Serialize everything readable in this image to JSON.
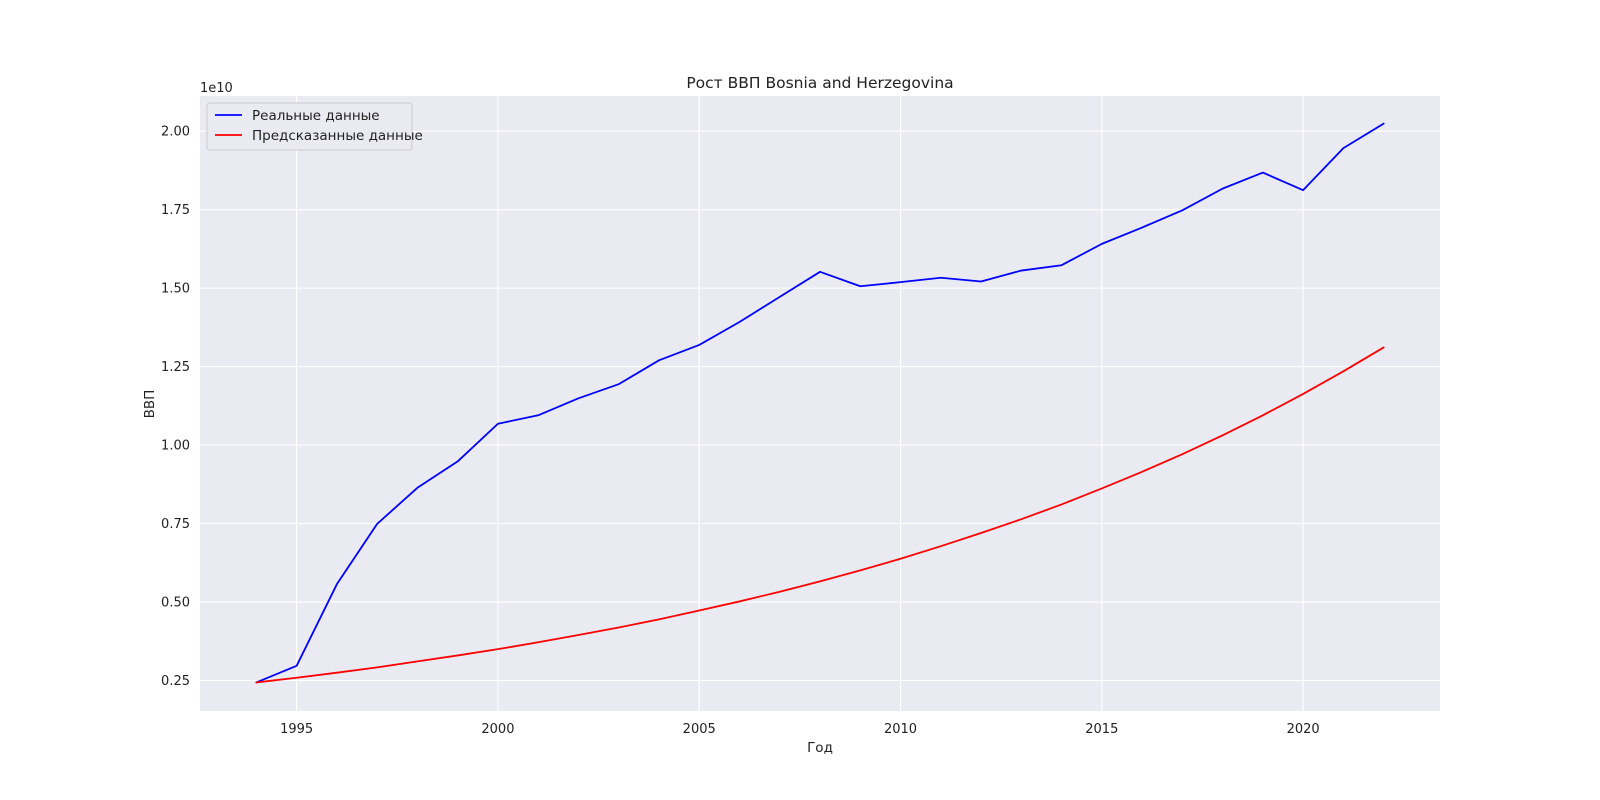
{
  "chart_data": {
    "type": "line",
    "title": "Рост ВВП Bosnia and Herzegovina",
    "xlabel": "Год",
    "ylabel": "ВВП",
    "y_offset_label": "1e10",
    "y_scale": 10000000000,
    "x": [
      1994,
      1995,
      1996,
      1997,
      1998,
      1999,
      2000,
      2001,
      2002,
      2003,
      2004,
      2005,
      2006,
      2007,
      2008,
      2009,
      2010,
      2011,
      2012,
      2013,
      2014,
      2015,
      2016,
      2017,
      2018,
      2019,
      2020,
      2021,
      2022
    ],
    "series": [
      {
        "name": "Реальные данные",
        "color": "#0000ff",
        "values": [
          0.244,
          0.297,
          0.557,
          0.749,
          0.864,
          0.948,
          1.068,
          1.095,
          1.149,
          1.194,
          1.27,
          1.319,
          1.392,
          1.472,
          1.552,
          1.506,
          1.519,
          1.533,
          1.521,
          1.556,
          1.573,
          1.641,
          1.693,
          1.748,
          1.817,
          1.868,
          1.812,
          1.946,
          2.024
        ]
      },
      {
        "name": "Предсказанные данные",
        "color": "#ff0000",
        "values": [
          0.244,
          0.259,
          0.275,
          0.292,
          0.311,
          0.33,
          0.35,
          0.372,
          0.395,
          0.419,
          0.445,
          0.473,
          0.502,
          0.533,
          0.566,
          0.601,
          0.638,
          0.678,
          0.72,
          0.764,
          0.811,
          0.862,
          0.915,
          0.971,
          1.031,
          1.095,
          1.163,
          1.235,
          1.311
        ]
      }
    ],
    "xlim": [
      1992.6,
      2023.4
    ],
    "ylim": [
      0.153,
      2.112
    ],
    "x_ticks": [
      1995,
      2000,
      2005,
      2010,
      2015,
      2020
    ],
    "y_ticks": [
      0.25,
      0.5,
      0.75,
      1.0,
      1.25,
      1.5,
      1.75,
      2.0
    ],
    "y_tick_labels": [
      "0.25",
      "0.50",
      "0.75",
      "1.00",
      "1.25",
      "1.50",
      "1.75",
      "2.00"
    ],
    "grid": true,
    "legend_position": "upper-left",
    "background": "#eaeaf2"
  }
}
